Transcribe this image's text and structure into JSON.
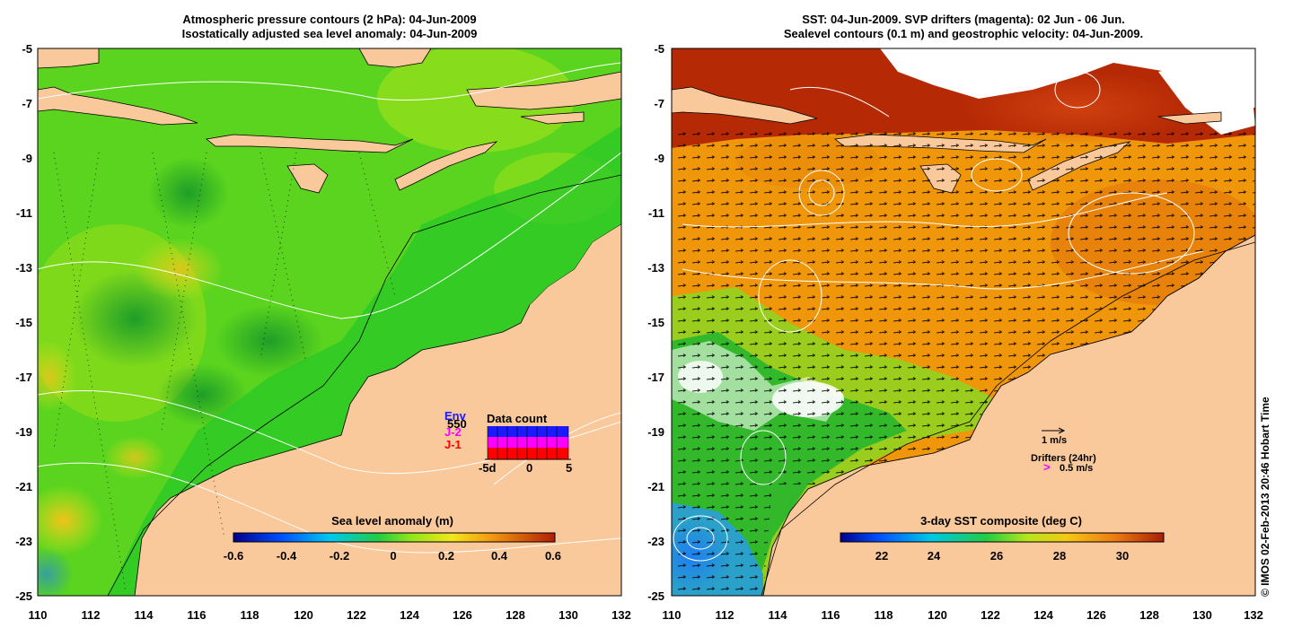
{
  "left_panel": {
    "title_line1": "Atmospheric pressure contours (2 hPa): 04-Jun-2009",
    "title_line2": "Isostatically adjusted sea level anomaly: 04-Jun-2009",
    "colorbar_label": "Sea level anomaly (m)",
    "colorbar_ticks": [
      "-0.6",
      "-0.4",
      "-0.2",
      "0",
      "0.2",
      "0.4",
      "0.6"
    ],
    "data_count": {
      "title": "Data count",
      "legend": [
        {
          "label": "Env",
          "color": "#1a1aff"
        },
        {
          "label": "J-2",
          "color": "#ff00ff"
        },
        {
          "label": "J-1",
          "color": "#ff0000"
        }
      ],
      "overlap_number": "550",
      "xticks": [
        "-5d",
        "0",
        "5"
      ]
    }
  },
  "right_panel": {
    "title_line1": "SST: 04-Jun-2009. SVP drifters (magenta): 02 Jun - 06 Jun.",
    "title_line2": "Sealevel contours (0.1 m) and geostrophic velocity: 04-Jun-2009.",
    "colorbar_label": "3-day SST composite (deg C)",
    "colorbar_ticks": [
      "22",
      "24",
      "26",
      "28",
      "30"
    ],
    "velocity_scale_label": "1 m/s",
    "drifters_label": "Drifters (24hr)",
    "drifters_scale_label": "0.5 m/s"
  },
  "axes": {
    "y_ticks": [
      "-5",
      "-7",
      "-9",
      "-11",
      "-13",
      "-15",
      "-17",
      "-19",
      "-21",
      "-23",
      "-25"
    ],
    "x_ticks": [
      "110",
      "112",
      "114",
      "116",
      "118",
      "120",
      "122",
      "124",
      "126",
      "128",
      "130",
      "132"
    ]
  },
  "colors": {
    "land": "#f9c89b",
    "sea_green": "#33cc22",
    "sst_orange": "#f0960a",
    "sst_red": "#b52a05"
  },
  "credit": "© IMOS 02-Feb-2013 20:46 Hobart Time"
}
